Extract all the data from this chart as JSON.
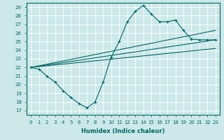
{
  "xlabel": "Humidex (Indice chaleur)",
  "bg_color": "#cce8e8",
  "grid_color": "#ffffff",
  "line_color": "#006666",
  "xlim": [
    -0.5,
    23.5
  ],
  "ylim": [
    16.5,
    29.5
  ],
  "yticks": [
    17,
    18,
    19,
    20,
    21,
    22,
    23,
    24,
    25,
    26,
    27,
    28,
    29
  ],
  "xticks": [
    0,
    1,
    2,
    3,
    4,
    5,
    6,
    7,
    8,
    9,
    10,
    11,
    12,
    13,
    14,
    15,
    16,
    17,
    18,
    19,
    20,
    21,
    22,
    23
  ],
  "line1_x": [
    0,
    1,
    2,
    3,
    4,
    5,
    6,
    7,
    8,
    9,
    10,
    11,
    12,
    13,
    14,
    15,
    16,
    17,
    18,
    19,
    20,
    21,
    22,
    23
  ],
  "line1_y": [
    22,
    21.8,
    21.0,
    20.3,
    19.3,
    18.5,
    17.8,
    17.3,
    18.0,
    20.3,
    23.2,
    25.0,
    27.3,
    28.5,
    29.2,
    28.2,
    27.3,
    27.3,
    27.5,
    26.3,
    25.3,
    25.2,
    25.2,
    25.2
  ],
  "line2_x": [
    0,
    23
  ],
  "line2_y": [
    22,
    26.3
  ],
  "line3_x": [
    0,
    23
  ],
  "line3_y": [
    22,
    25.2
  ],
  "line4_x": [
    0,
    23
  ],
  "line4_y": [
    22,
    24.2
  ]
}
